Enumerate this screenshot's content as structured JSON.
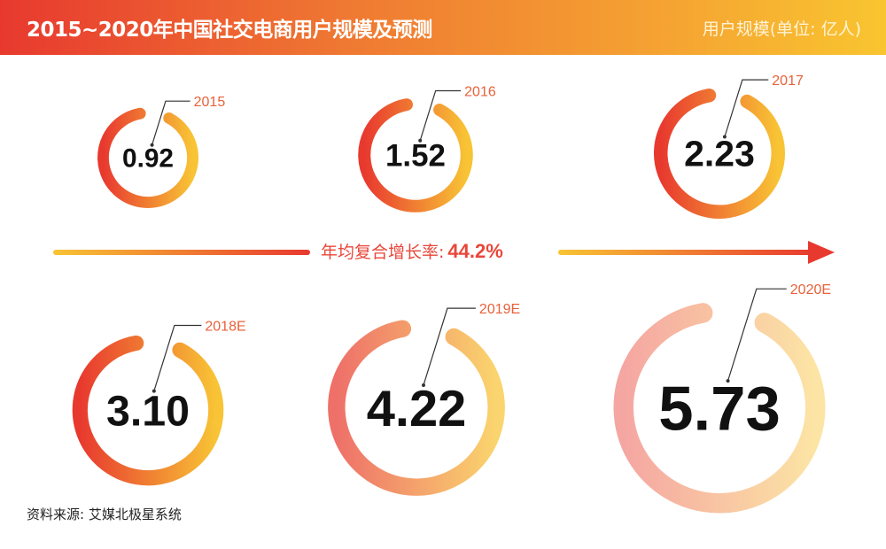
{
  "header": {
    "title": "2015~2020年中国社交电商用户规模及预测",
    "unit": "用户规模(单位: 亿人)"
  },
  "cagr": {
    "label": "年均复合增长率:",
    "value": "44.2%"
  },
  "source": "资料来源: 艾媒北极星系统",
  "colors": {
    "red": "#e8392f",
    "yellow": "#f7c233",
    "label": "#e8613a"
  },
  "chart_data": {
    "type": "ring",
    "title": "2015~2020年中国社交电商用户规模及预测",
    "unit": "亿人",
    "categories": [
      "2015",
      "2016",
      "2017",
      "2018E",
      "2019E",
      "2020E"
    ],
    "values": [
      0.92,
      1.52,
      2.23,
      3.1,
      4.22,
      5.73
    ],
    "value_labels": [
      "0.92",
      "1.52",
      "2.23",
      "3.10",
      "4.22",
      "5.73"
    ],
    "cagr": "44.2%"
  }
}
